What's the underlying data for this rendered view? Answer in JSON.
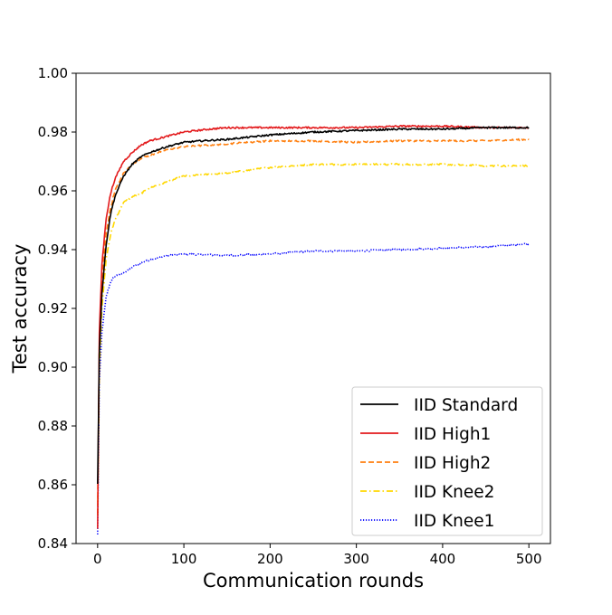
{
  "chart_data": {
    "type": "line",
    "title": "",
    "xlabel": "Communication rounds",
    "ylabel": "Test accuracy",
    "xlim": [
      -25,
      525
    ],
    "ylim": [
      0.84,
      1.0
    ],
    "xticks": [
      "0",
      "100",
      "200",
      "300",
      "400",
      "500"
    ],
    "yticks": [
      "0.84",
      "0.86",
      "0.88",
      "0.90",
      "0.92",
      "0.94",
      "0.96",
      "0.98",
      "1.00"
    ],
    "grid": false,
    "legend_position": "lower-right",
    "series": [
      {
        "name": "IID Standard",
        "color": "#000000",
        "style": "solid",
        "points": [
          [
            0,
            0.86
          ],
          [
            2,
            0.905
          ],
          [
            5,
            0.925
          ],
          [
            10,
            0.942
          ],
          [
            15,
            0.952
          ],
          [
            20,
            0.958
          ],
          [
            30,
            0.965
          ],
          [
            40,
            0.969
          ],
          [
            50,
            0.9715
          ],
          [
            60,
            0.973
          ],
          [
            80,
            0.975
          ],
          [
            100,
            0.9765
          ],
          [
            120,
            0.977
          ],
          [
            150,
            0.9775
          ],
          [
            200,
            0.979
          ],
          [
            250,
            0.98
          ],
          [
            300,
            0.9805
          ],
          [
            350,
            0.981
          ],
          [
            400,
            0.981
          ],
          [
            450,
            0.9815
          ],
          [
            500,
            0.9815
          ]
        ]
      },
      {
        "name": "IID High1",
        "color": "#e31a1c",
        "style": "solid",
        "points": [
          [
            0,
            0.845
          ],
          [
            2,
            0.912
          ],
          [
            5,
            0.935
          ],
          [
            10,
            0.951
          ],
          [
            15,
            0.959
          ],
          [
            20,
            0.964
          ],
          [
            30,
            0.97
          ],
          [
            40,
            0.973
          ],
          [
            50,
            0.9755
          ],
          [
            60,
            0.977
          ],
          [
            80,
            0.9785
          ],
          [
            100,
            0.98
          ],
          [
            130,
            0.981
          ],
          [
            150,
            0.9815
          ],
          [
            200,
            0.9815
          ],
          [
            250,
            0.9815
          ],
          [
            300,
            0.9815
          ],
          [
            350,
            0.982
          ],
          [
            400,
            0.982
          ],
          [
            450,
            0.9815
          ],
          [
            500,
            0.9815
          ]
        ]
      },
      {
        "name": "IID High2",
        "color": "#ff7f0e",
        "style": "dashed",
        "points": [
          [
            0,
            0.85
          ],
          [
            2,
            0.908
          ],
          [
            5,
            0.93
          ],
          [
            10,
            0.946
          ],
          [
            15,
            0.954
          ],
          [
            20,
            0.96
          ],
          [
            30,
            0.966
          ],
          [
            40,
            0.969
          ],
          [
            50,
            0.971
          ],
          [
            60,
            0.972
          ],
          [
            80,
            0.974
          ],
          [
            100,
            0.975
          ],
          [
            150,
            0.976
          ],
          [
            200,
            0.977
          ],
          [
            250,
            0.977
          ],
          [
            300,
            0.9765
          ],
          [
            350,
            0.977
          ],
          [
            400,
            0.977
          ],
          [
            450,
            0.977
          ],
          [
            500,
            0.9775
          ]
        ]
      },
      {
        "name": "IID Knee2",
        "color": "#ffd700",
        "style": "dashdot",
        "points": [
          [
            0,
            0.85
          ],
          [
            2,
            0.9
          ],
          [
            5,
            0.92
          ],
          [
            10,
            0.937
          ],
          [
            15,
            0.945
          ],
          [
            20,
            0.95
          ],
          [
            30,
            0.956
          ],
          [
            40,
            0.958
          ],
          [
            50,
            0.959
          ],
          [
            60,
            0.961
          ],
          [
            80,
            0.963
          ],
          [
            100,
            0.965
          ],
          [
            150,
            0.966
          ],
          [
            200,
            0.968
          ],
          [
            250,
            0.969
          ],
          [
            300,
            0.969
          ],
          [
            350,
            0.969
          ],
          [
            400,
            0.969
          ],
          [
            450,
            0.9685
          ],
          [
            500,
            0.9685
          ]
        ]
      },
      {
        "name": "IID Knee1",
        "color": "#0000ff",
        "style": "dotted",
        "points": [
          [
            0,
            0.843
          ],
          [
            2,
            0.895
          ],
          [
            5,
            0.912
          ],
          [
            10,
            0.924
          ],
          [
            15,
            0.929
          ],
          [
            20,
            0.931
          ],
          [
            30,
            0.932
          ],
          [
            40,
            0.934
          ],
          [
            50,
            0.9355
          ],
          [
            60,
            0.9365
          ],
          [
            80,
            0.938
          ],
          [
            100,
            0.9385
          ],
          [
            150,
            0.938
          ],
          [
            200,
            0.9385
          ],
          [
            250,
            0.9395
          ],
          [
            300,
            0.9395
          ],
          [
            350,
            0.94
          ],
          [
            400,
            0.9405
          ],
          [
            450,
            0.941
          ],
          [
            500,
            0.942
          ]
        ]
      }
    ]
  }
}
